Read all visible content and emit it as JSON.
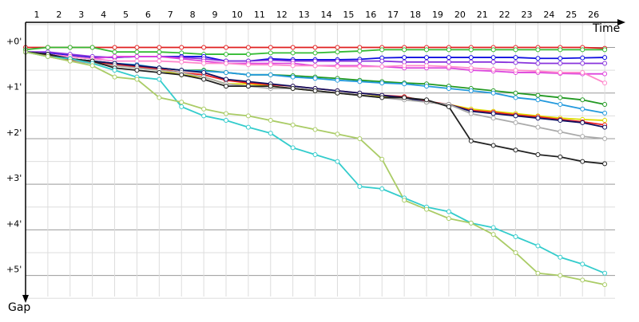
{
  "chart_data": {
    "type": "line",
    "x_label": "Time",
    "y_label": "Gap",
    "x": [
      0,
      1,
      2,
      3,
      4,
      5,
      6,
      7,
      8,
      9,
      10,
      11,
      12,
      13,
      14,
      15,
      16,
      17,
      18,
      19,
      20,
      21,
      22,
      23,
      24,
      25,
      26
    ],
    "xlim": [
      0,
      27
    ],
    "xticks": [
      1,
      2,
      3,
      4,
      5,
      6,
      7,
      8,
      9,
      10,
      11,
      12,
      13,
      14,
      15,
      16,
      17,
      18,
      19,
      20,
      21,
      22,
      23,
      24,
      25,
      26
    ],
    "ylim": [
      -0.55,
      5.6
    ],
    "yticks": [
      {
        "value": 0,
        "label": "+0'"
      },
      {
        "value": 1,
        "label": "+1'"
      },
      {
        "value": 2,
        "label": "+2'"
      },
      {
        "value": 3,
        "label": "+3'"
      },
      {
        "value": 4,
        "label": "+4'"
      },
      {
        "value": 5,
        "label": "+5'"
      }
    ],
    "minor_yticks": [
      -0.5,
      0.5,
      1.5,
      2.5,
      3.5,
      4.5,
      5.5
    ],
    "y_inverted": true,
    "grid": true,
    "series": [
      {
        "color": "#e02020",
        "values": [
          0,
          0,
          0,
          0,
          0,
          0,
          0,
          0,
          0,
          0,
          0,
          0,
          0,
          0,
          0,
          0,
          0,
          0,
          0,
          0,
          0,
          0,
          0,
          0,
          0,
          0,
          0.02
        ]
      },
      {
        "color": "#33bb33",
        "values": [
          0.05,
          0,
          0,
          0,
          0.1,
          0.1,
          0.1,
          0.12,
          0.15,
          0.15,
          0.15,
          0.12,
          0.12,
          0.12,
          0.1,
          0.08,
          0.05,
          0.05,
          0.05,
          0.05,
          0.05,
          0.05,
          0.05,
          0.05,
          0.05,
          0.05,
          0.05
        ]
      },
      {
        "color": "#1010e0",
        "values": [
          0.1,
          0.12,
          0.18,
          0.22,
          0.22,
          0.2,
          0.2,
          0.2,
          0.2,
          0.3,
          0.3,
          0.25,
          0.27,
          0.27,
          0.27,
          0.26,
          0.23,
          0.22,
          0.22,
          0.22,
          0.22,
          0.22,
          0.22,
          0.24,
          0.24,
          0.23,
          0.22
        ]
      },
      {
        "color": "#8833dd",
        "values": [
          0.1,
          0.1,
          0.15,
          0.2,
          0.22,
          0.2,
          0.2,
          0.22,
          0.25,
          0.3,
          0.3,
          0.28,
          0.3,
          0.3,
          0.3,
          0.3,
          0.3,
          0.32,
          0.32,
          0.32,
          0.32,
          0.32,
          0.33,
          0.35,
          0.35,
          0.35,
          0.35
        ]
      },
      {
        "color": "#dd44dd",
        "values": [
          0.1,
          0.15,
          0.2,
          0.25,
          0.2,
          0.2,
          0.2,
          0.25,
          0.3,
          0.35,
          0.35,
          0.35,
          0.35,
          0.4,
          0.4,
          0.4,
          0.42,
          0.45,
          0.45,
          0.45,
          0.5,
          0.52,
          0.55,
          0.55,
          0.57,
          0.58,
          0.58
        ]
      },
      {
        "color": "#ff88cc",
        "values": [
          0.1,
          0.15,
          0.2,
          0.25,
          0.3,
          0.3,
          0.3,
          0.32,
          0.35,
          0.35,
          0.38,
          0.38,
          0.4,
          0.4,
          0.42,
          0.42,
          0.42,
          0.4,
          0.4,
          0.42,
          0.45,
          0.48,
          0.5,
          0.52,
          0.55,
          0.55,
          0.78
        ]
      },
      {
        "color": "#229922",
        "values": [
          0.1,
          0.15,
          0.25,
          0.3,
          0.35,
          0.4,
          0.45,
          0.5,
          0.5,
          0.55,
          0.6,
          0.6,
          0.62,
          0.65,
          0.68,
          0.72,
          0.75,
          0.78,
          0.8,
          0.85,
          0.9,
          0.95,
          1.0,
          1.05,
          1.1,
          1.15,
          1.25
        ]
      },
      {
        "color": "#2299dd",
        "values": [
          0.1,
          0.15,
          0.25,
          0.3,
          0.35,
          0.38,
          0.45,
          0.5,
          0.52,
          0.55,
          0.6,
          0.6,
          0.65,
          0.68,
          0.72,
          0.75,
          0.78,
          0.8,
          0.85,
          0.9,
          0.95,
          1.0,
          1.1,
          1.15,
          1.25,
          1.35,
          1.44
        ]
      },
      {
        "color": "#dddd00",
        "values": [
          0.1,
          0.2,
          0.3,
          0.35,
          0.4,
          0.45,
          0.5,
          0.6,
          0.65,
          0.8,
          0.8,
          0.85,
          0.9,
          0.95,
          1.0,
          1.05,
          1.08,
          1.1,
          1.2,
          1.25,
          1.35,
          1.4,
          1.45,
          1.5,
          1.55,
          1.58,
          1.6
        ]
      },
      {
        "color": "#ee2222",
        "values": [
          0.1,
          0.18,
          0.28,
          0.33,
          0.38,
          0.42,
          0.48,
          0.55,
          0.6,
          0.72,
          0.78,
          0.82,
          0.85,
          0.9,
          0.95,
          1.0,
          1.05,
          1.08,
          1.18,
          1.25,
          1.38,
          1.42,
          1.48,
          1.52,
          1.58,
          1.63,
          1.7
        ]
      },
      {
        "color": "#101060",
        "values": [
          0.1,
          0.15,
          0.25,
          0.3,
          0.35,
          0.4,
          0.45,
          0.5,
          0.55,
          0.7,
          0.75,
          0.8,
          0.85,
          0.9,
          0.95,
          1.0,
          1.05,
          1.1,
          1.2,
          1.25,
          1.4,
          1.45,
          1.5,
          1.55,
          1.6,
          1.65,
          1.75
        ]
      },
      {
        "color": "#aaaaaa",
        "values": [
          0.1,
          0.2,
          0.3,
          0.35,
          0.4,
          0.45,
          0.5,
          0.55,
          0.65,
          0.8,
          0.85,
          0.9,
          0.9,
          0.95,
          1.0,
          1.05,
          1.1,
          1.15,
          1.2,
          1.25,
          1.45,
          1.55,
          1.65,
          1.75,
          1.85,
          1.95,
          2.0
        ]
      },
      {
        "color": "#222222",
        "values": [
          0.1,
          0.15,
          0.25,
          0.3,
          0.45,
          0.5,
          0.55,
          0.6,
          0.7,
          0.85,
          0.85,
          0.85,
          0.9,
          0.95,
          1.0,
          1.05,
          1.1,
          1.1,
          1.15,
          1.3,
          2.05,
          2.15,
          2.25,
          2.35,
          2.4,
          2.5,
          2.55
        ]
      },
      {
        "color": "#33cccc",
        "values": [
          0.1,
          0.2,
          0.25,
          0.35,
          0.5,
          0.65,
          0.7,
          1.3,
          1.5,
          1.6,
          1.75,
          1.88,
          2.2,
          2.35,
          2.5,
          3.05,
          3.1,
          3.3,
          3.5,
          3.6,
          3.85,
          3.95,
          4.15,
          4.35,
          4.6,
          4.75,
          4.95
        ]
      },
      {
        "color": "#aacc66",
        "values": [
          0.1,
          0.2,
          0.3,
          0.4,
          0.65,
          0.7,
          1.1,
          1.2,
          1.35,
          1.45,
          1.5,
          1.6,
          1.7,
          1.8,
          1.9,
          2.0,
          2.45,
          3.35,
          3.55,
          3.75,
          3.85,
          4.1,
          4.5,
          4.95,
          5.0,
          5.1,
          5.2
        ]
      }
    ]
  }
}
